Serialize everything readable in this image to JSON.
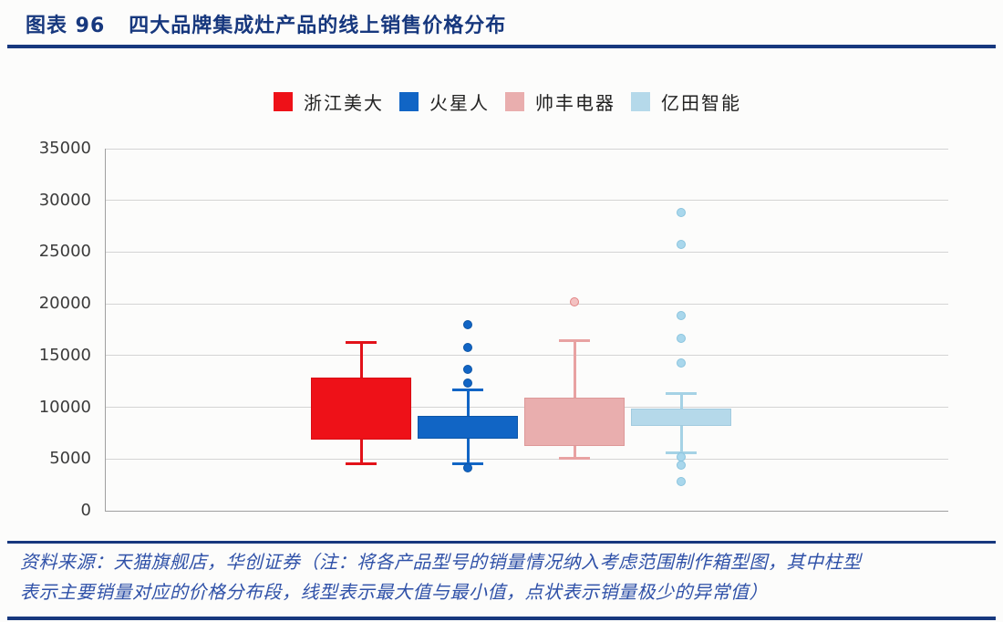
{
  "page": {
    "background": "#fcfcfb",
    "accent_navy": "#17387e"
  },
  "header": {
    "figure_label": "图表 96",
    "title": "四大品牌集成灶产品的线上销售价格分布"
  },
  "chart_data": {
    "type": "boxplot",
    "orientation": "vertical",
    "title": "四大品牌集成灶产品的线上销售价格分布",
    "xlabel": "",
    "ylabel": "",
    "ylim": [
      0,
      35000
    ],
    "ytick_step": 5000,
    "yticks": [
      0,
      5000,
      10000,
      15000,
      20000,
      25000,
      30000,
      35000
    ],
    "grid": "horizontal",
    "legend_position": "top-center",
    "categories": [
      "浙江美大",
      "火星人",
      "帅丰电器",
      "亿田智能"
    ],
    "series": [
      {
        "name": "浙江美大",
        "color": "#ee1118",
        "border_color": "#d80d14",
        "whisker_color": "#e21219",
        "dot_fill": "#ee1118",
        "dot_border": "#d80d14",
        "max": 16300,
        "q3": 12900,
        "q1": 6900,
        "min": 4500,
        "outliers": []
      },
      {
        "name": "火星人",
        "color": "#1165c5",
        "border_color": "#0d55a6",
        "whisker_color": "#1165c5",
        "dot_fill": "#1165c5",
        "dot_border": "#0d55a6",
        "max": 11700,
        "q3": 9200,
        "q1": 7000,
        "min": 4500,
        "outliers": [
          18000,
          15800,
          13700,
          12300,
          4100
        ]
      },
      {
        "name": "帅丰电器",
        "color": "#e9aeae",
        "border_color": "#dd9898",
        "whisker_color": "#e8a2a2",
        "dot_fill": "#f3c1c1",
        "dot_border": "#e28383",
        "max": 16400,
        "q3": 10900,
        "q1": 6300,
        "min": 5100,
        "outliers": [
          20200
        ]
      },
      {
        "name": "亿田智能",
        "color": "#b5d9ea",
        "border_color": "#a2cbdf",
        "whisker_color": "#a5d2e5",
        "dot_fill": "#a9d7ec",
        "dot_border": "#8ac4de",
        "max": 11300,
        "q3": 9900,
        "q1": 8200,
        "min": 5600,
        "outliers": [
          28800,
          25700,
          18900,
          16700,
          14300,
          5200,
          4400,
          2800
        ]
      }
    ]
  },
  "footer": {
    "line1": "资料来源：天猫旗舰店，华创证券（注：将各产品型号的销量情况纳入考虑范围制作箱型图，其中柱型",
    "line2": "表示主要销量对应的价格分布段，线型表示最大值与最小值，点状表示销量极少的异常值）"
  }
}
